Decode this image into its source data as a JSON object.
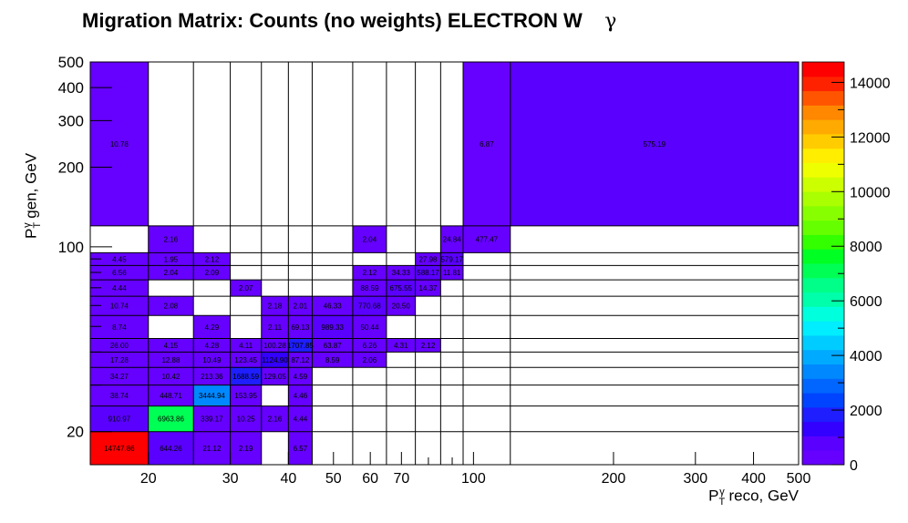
{
  "chart_data": {
    "type": "heatmap",
    "title": "Migration Matrix: Counts (no weights) ELECTRON W",
    "title_symbol": "γ",
    "xlabel": "P_T^γ reco, GeV",
    "ylabel": "P_T^γ gen, GeV",
    "x_scale": "log",
    "y_scale": "log",
    "xlim": [
      15,
      500
    ],
    "ylim": [
      15,
      500
    ],
    "x_bin_edges": [
      15,
      20,
      25,
      30,
      35,
      40,
      45,
      55,
      65,
      75,
      85,
      95,
      120,
      500
    ],
    "y_bin_edges": [
      15,
      20,
      25,
      30,
      35,
      40,
      45,
      55,
      65,
      75,
      85,
      95,
      120,
      500
    ],
    "x_ticks": [
      20,
      30,
      40,
      50,
      60,
      70,
      100,
      200,
      300,
      400,
      500
    ],
    "y_ticks": [
      20,
      100,
      200,
      300,
      400,
      500
    ],
    "z_range": [
      0,
      14747.86
    ],
    "colorbar_ticks": [
      0,
      2000,
      4000,
      6000,
      8000,
      10000,
      12000,
      14000
    ],
    "cells": [
      {
        "xb": 0,
        "yb": 0,
        "value": "14747.86"
      },
      {
        "xb": 1,
        "yb": 0,
        "value": "644.26"
      },
      {
        "xb": 2,
        "yb": 0,
        "value": "21.12"
      },
      {
        "xb": 3,
        "yb": 0,
        "value": "2.19"
      },
      {
        "xb": 5,
        "yb": 0,
        "value": "6.57"
      },
      {
        "xb": 0,
        "yb": 1,
        "value": "910.97"
      },
      {
        "xb": 1,
        "yb": 1,
        "value": "6963.86"
      },
      {
        "xb": 2,
        "yb": 1,
        "value": "339.17"
      },
      {
        "xb": 3,
        "yb": 1,
        "value": "10.25"
      },
      {
        "xb": 4,
        "yb": 1,
        "value": "2.16"
      },
      {
        "xb": 5,
        "yb": 1,
        "value": "4.44"
      },
      {
        "xb": 0,
        "yb": 2,
        "value": "38.74"
      },
      {
        "xb": 1,
        "yb": 2,
        "value": "448.71"
      },
      {
        "xb": 2,
        "yb": 2,
        "value": "3444.94"
      },
      {
        "xb": 3,
        "yb": 2,
        "value": "153.95"
      },
      {
        "xb": 5,
        "yb": 2,
        "value": "4.46"
      },
      {
        "xb": 0,
        "yb": 3,
        "value": "34.27"
      },
      {
        "xb": 1,
        "yb": 3,
        "value": "10.42"
      },
      {
        "xb": 2,
        "yb": 3,
        "value": "213.36"
      },
      {
        "xb": 3,
        "yb": 3,
        "value": "1688.59"
      },
      {
        "xb": 4,
        "yb": 3,
        "value": "129.05"
      },
      {
        "xb": 5,
        "yb": 3,
        "value": "4.59"
      },
      {
        "xb": 0,
        "yb": 4,
        "value": "17.28"
      },
      {
        "xb": 1,
        "yb": 4,
        "value": "12.88"
      },
      {
        "xb": 2,
        "yb": 4,
        "value": "10.49"
      },
      {
        "xb": 3,
        "yb": 4,
        "value": "123.45"
      },
      {
        "xb": 4,
        "yb": 4,
        "value": "1124.90"
      },
      {
        "xb": 5,
        "yb": 4,
        "value": "87.12"
      },
      {
        "xb": 6,
        "yb": 4,
        "value": "8.59"
      },
      {
        "xb": 7,
        "yb": 4,
        "value": "2.06"
      },
      {
        "xb": 0,
        "yb": 5,
        "value": "26.00"
      },
      {
        "xb": 1,
        "yb": 5,
        "value": "4.15"
      },
      {
        "xb": 2,
        "yb": 5,
        "value": "4.28"
      },
      {
        "xb": 3,
        "yb": 5,
        "value": "4.11"
      },
      {
        "xb": 4,
        "yb": 5,
        "value": "100.28"
      },
      {
        "xb": 5,
        "yb": 5,
        "value": "1707.85"
      },
      {
        "xb": 6,
        "yb": 5,
        "value": "63.87"
      },
      {
        "xb": 7,
        "yb": 5,
        "value": "6.26"
      },
      {
        "xb": 8,
        "yb": 5,
        "value": "4.31"
      },
      {
        "xb": 9,
        "yb": 5,
        "value": "2.12"
      },
      {
        "xb": 0,
        "yb": 6,
        "value": "8.74"
      },
      {
        "xb": 2,
        "yb": 6,
        "value": "4.29"
      },
      {
        "xb": 4,
        "yb": 6,
        "value": "2.11"
      },
      {
        "xb": 5,
        "yb": 6,
        "value": "69.13"
      },
      {
        "xb": 6,
        "yb": 6,
        "value": "989.33"
      },
      {
        "xb": 7,
        "yb": 6,
        "value": "50.44"
      },
      {
        "xb": 0,
        "yb": 7,
        "value": "10.74"
      },
      {
        "xb": 1,
        "yb": 7,
        "value": "2.08"
      },
      {
        "xb": 4,
        "yb": 7,
        "value": "2.18"
      },
      {
        "xb": 5,
        "yb": 7,
        "value": "2.01"
      },
      {
        "xb": 6,
        "yb": 7,
        "value": "46.33"
      },
      {
        "xb": 7,
        "yb": 7,
        "value": "770.68"
      },
      {
        "xb": 8,
        "yb": 7,
        "value": "20.50"
      },
      {
        "xb": 0,
        "yb": 8,
        "value": "4.44"
      },
      {
        "xb": 3,
        "yb": 8,
        "value": "2.07"
      },
      {
        "xb": 7,
        "yb": 8,
        "value": "88.59"
      },
      {
        "xb": 8,
        "yb": 8,
        "value": "675.55"
      },
      {
        "xb": 9,
        "yb": 8,
        "value": "14.37"
      },
      {
        "xb": 0,
        "yb": 9,
        "value": "6.56"
      },
      {
        "xb": 1,
        "yb": 9,
        "value": "2.04"
      },
      {
        "xb": 2,
        "yb": 9,
        "value": "2.09"
      },
      {
        "xb": 7,
        "yb": 9,
        "value": "2.12"
      },
      {
        "xb": 8,
        "yb": 9,
        "value": "34.33"
      },
      {
        "xb": 9,
        "yb": 9,
        "value": "588.17"
      },
      {
        "xb": 10,
        "yb": 9,
        "value": "11.81"
      },
      {
        "xb": 0,
        "yb": 10,
        "value": "4.45"
      },
      {
        "xb": 1,
        "yb": 10,
        "value": "1.95"
      },
      {
        "xb": 2,
        "yb": 10,
        "value": "2.12"
      },
      {
        "xb": 9,
        "yb": 10,
        "value": "27.98"
      },
      {
        "xb": 10,
        "yb": 10,
        "value": "579.17"
      },
      {
        "xb": 1,
        "yb": 11,
        "value": "2.16"
      },
      {
        "xb": 7,
        "yb": 11,
        "value": "2.04"
      },
      {
        "xb": 10,
        "yb": 11,
        "value": "24.84"
      },
      {
        "xb": 11,
        "yb": 11,
        "value": "477.47"
      },
      {
        "xb": 0,
        "yb": 12,
        "value": "10.78"
      },
      {
        "xb": 11,
        "yb": 12,
        "value": "6.87"
      },
      {
        "xb": 12,
        "yb": 12,
        "value": "575.19"
      }
    ]
  },
  "palette": [
    "#6600ff",
    "#5a00ff",
    "#3300ff",
    "#1e1eff",
    "#0044ff",
    "#0066ff",
    "#0088ff",
    "#00aaff",
    "#00ccff",
    "#00eeff",
    "#00ffdd",
    "#00ffaa",
    "#00ff88",
    "#00ff55",
    "#00ff22",
    "#33ff00",
    "#66ff00",
    "#88ff00",
    "#aaff00",
    "#ccff00",
    "#eeff00",
    "#ffee00",
    "#ffcc00",
    "#ffaa00",
    "#ff8800",
    "#ff5500",
    "#ff2200",
    "#ff0000"
  ]
}
